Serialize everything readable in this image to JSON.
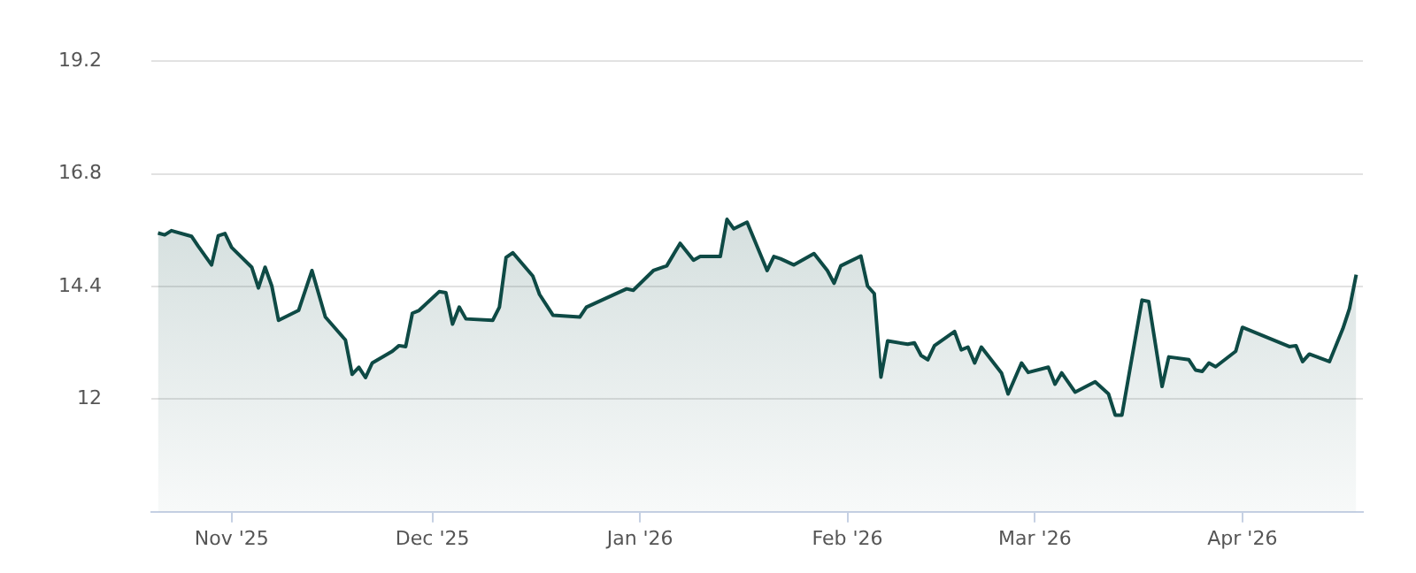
{
  "chart_data": {
    "type": "area",
    "x": [
      "2025-10-21",
      "2025-10-22",
      "2025-10-23",
      "2025-10-26",
      "2025-10-27",
      "2025-10-29",
      "2025-10-30",
      "2025-10-31",
      "2025-11-01",
      "2025-11-04",
      "2025-11-05",
      "2025-11-06",
      "2025-11-07",
      "2025-11-08",
      "2025-11-11",
      "2025-11-13",
      "2025-11-15",
      "2025-11-18",
      "2025-11-19",
      "2025-11-20",
      "2025-11-21",
      "2025-11-22",
      "2025-11-25",
      "2025-11-26",
      "2025-11-27",
      "2025-11-28",
      "2025-11-29",
      "2025-12-02",
      "2025-12-03",
      "2025-12-04",
      "2025-12-05",
      "2025-12-06",
      "2025-12-10",
      "2025-12-11",
      "2025-12-12",
      "2025-12-13",
      "2025-12-16",
      "2025-12-17",
      "2025-12-19",
      "2025-12-23",
      "2025-12-24",
      "2025-12-30",
      "2025-12-31",
      "2026-01-03",
      "2026-01-05",
      "2026-01-07",
      "2026-01-09",
      "2026-01-10",
      "2026-01-13",
      "2026-01-14",
      "2026-01-15",
      "2026-01-17",
      "2026-01-20",
      "2026-01-21",
      "2026-01-22",
      "2026-01-24",
      "2026-01-27",
      "2026-01-29",
      "2026-01-30",
      "2026-01-31",
      "2026-02-03",
      "2026-02-04",
      "2026-02-05",
      "2026-02-06",
      "2026-02-07",
      "2026-02-10",
      "2026-02-11",
      "2026-02-12",
      "2026-02-13",
      "2026-02-14",
      "2026-02-17",
      "2026-02-18",
      "2026-02-19",
      "2026-02-20",
      "2026-02-21",
      "2026-02-24",
      "2026-02-25",
      "2026-02-27",
      "2026-02-28",
      "2026-03-03",
      "2026-03-04",
      "2026-03-05",
      "2026-03-07",
      "2026-03-10",
      "2026-03-12",
      "2026-03-13",
      "2026-03-14",
      "2026-03-17",
      "2026-03-18",
      "2026-03-20",
      "2026-03-21",
      "2026-03-24",
      "2026-03-25",
      "2026-03-26",
      "2026-03-27",
      "2026-03-28",
      "2026-03-31",
      "2026-04-01",
      "2026-04-08",
      "2026-04-09",
      "2026-04-10",
      "2026-04-11",
      "2026-04-14",
      "2026-04-16",
      "2026-04-17",
      "2026-04-18"
    ],
    "series": [
      {
        "color": "#0e4a45",
        "values": [
          15.54,
          15.5,
          15.59,
          15.47,
          15.26,
          14.86,
          15.48,
          15.53,
          15.23,
          14.81,
          14.37,
          14.81,
          14.41,
          13.68,
          13.89,
          14.74,
          13.75,
          13.26,
          12.53,
          12.68,
          12.46,
          12.77,
          13.02,
          13.14,
          13.12,
          13.83,
          13.89,
          14.29,
          14.27,
          13.6,
          13.96,
          13.71,
          13.68,
          13.96,
          15.02,
          15.12,
          14.62,
          14.23,
          13.79,
          13.75,
          13.96,
          14.35,
          14.32,
          14.74,
          14.84,
          15.32,
          14.96,
          15.04,
          15.04,
          15.83,
          15.63,
          15.77,
          14.74,
          15.04,
          14.99,
          14.86,
          15.1,
          14.74,
          14.47,
          14.84,
          15.05,
          14.41,
          14.25,
          12.47,
          13.24,
          13.17,
          13.2,
          12.93,
          12.84,
          13.14,
          13.44,
          13.05,
          13.11,
          12.77,
          13.11,
          12.56,
          12.11,
          12.77,
          12.57,
          12.68,
          12.32,
          12.56,
          12.15,
          12.37,
          12.11,
          11.66,
          11.66,
          14.11,
          14.08,
          12.27,
          12.9,
          12.84,
          12.62,
          12.59,
          12.77,
          12.69,
          13.02,
          13.53,
          13.12,
          13.14,
          12.8,
          12.96,
          12.8,
          13.5,
          13.93,
          14.65
        ]
      }
    ],
    "xlim": [
      "2025-10-20",
      "2026-04-19"
    ],
    "xticks": [
      {
        "value": "2025-11-01",
        "label": "Nov '25"
      },
      {
        "value": "2025-12-01",
        "label": "Dec '25"
      },
      {
        "value": "2026-01-01",
        "label": "Jan '26"
      },
      {
        "value": "2026-02-01",
        "label": "Feb '26"
      },
      {
        "value": "2026-03-01",
        "label": "Mar '26"
      },
      {
        "value": "2026-04-01",
        "label": "Apr '26"
      }
    ],
    "ylim": [
      9.6,
      19.2
    ],
    "yticks": [
      12,
      14.4,
      16.8,
      19.2
    ],
    "grid": "y",
    "legend": false,
    "marker": "none",
    "line_style": "solid"
  }
}
